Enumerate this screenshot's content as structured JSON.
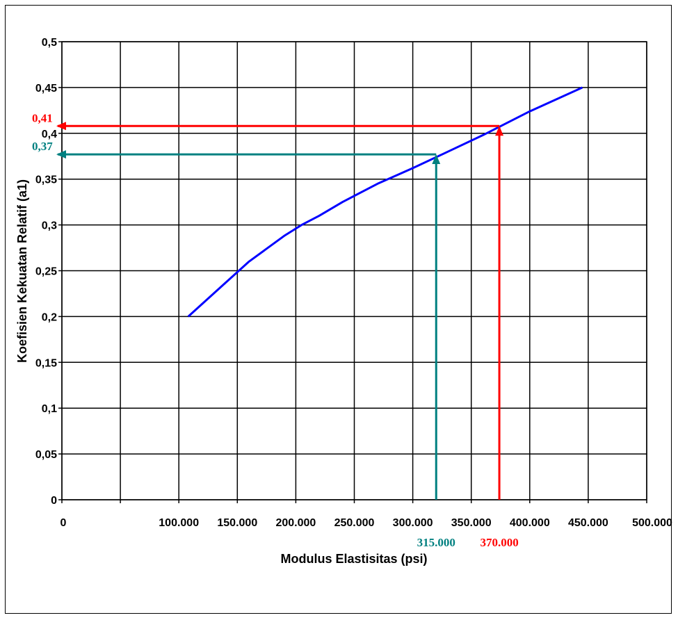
{
  "chart_data": {
    "type": "line",
    "title": "",
    "xlabel": "Modulus Elastisitas (psi)",
    "ylabel": "Koefisien Kekuatan Relatif (a1)",
    "xlim": [
      0,
      500000
    ],
    "ylim": [
      0,
      0.5
    ],
    "grid": true,
    "x_ticks": [
      {
        "value": 0,
        "label": "0"
      },
      {
        "value": 50000,
        "label": ""
      },
      {
        "value": 100000,
        "label": "100.000"
      },
      {
        "value": 150000,
        "label": "150.000"
      },
      {
        "value": 200000,
        "label": "200.000"
      },
      {
        "value": 250000,
        "label": "250.000"
      },
      {
        "value": 300000,
        "label": "300.000"
      },
      {
        "value": 350000,
        "label": "350.000"
      },
      {
        "value": 400000,
        "label": "400.000"
      },
      {
        "value": 450000,
        "label": "450.000"
      },
      {
        "value": 500000,
        "label": "500.000"
      }
    ],
    "y_ticks": [
      {
        "value": 0,
        "label": "0"
      },
      {
        "value": 0.05,
        "label": "0,05"
      },
      {
        "value": 0.1,
        "label": "0,1"
      },
      {
        "value": 0.15,
        "label": "0,15"
      },
      {
        "value": 0.2,
        "label": "0,2"
      },
      {
        "value": 0.25,
        "label": "0,25"
      },
      {
        "value": 0.3,
        "label": "0,3"
      },
      {
        "value": 0.35,
        "label": "0,35"
      },
      {
        "value": 0.4,
        "label": "0,4"
      },
      {
        "value": 0.45,
        "label": "0,45"
      },
      {
        "value": 0.5,
        "label": "0,5"
      }
    ],
    "series": [
      {
        "color": "#0000ff",
        "x": [
          108000,
          140000,
          160000,
          190000,
          205000,
          220000,
          240000,
          270000,
          300000,
          330000,
          360000,
          400000,
          445000
        ],
        "y": [
          0.2,
          0.237,
          0.26,
          0.288,
          0.3,
          0.31,
          0.325,
          0.345,
          0.362,
          0.38,
          0.398,
          0.424,
          0.45
        ]
      }
    ],
    "annotations": [
      {
        "x": 320000,
        "y": 0.377,
        "x_label": "315.000",
        "y_label": "0,37",
        "color": "#008080"
      },
      {
        "x": 374000,
        "y": 0.408,
        "x_label": "370.000",
        "y_label": "0,41",
        "color": "#ff0000"
      }
    ]
  }
}
